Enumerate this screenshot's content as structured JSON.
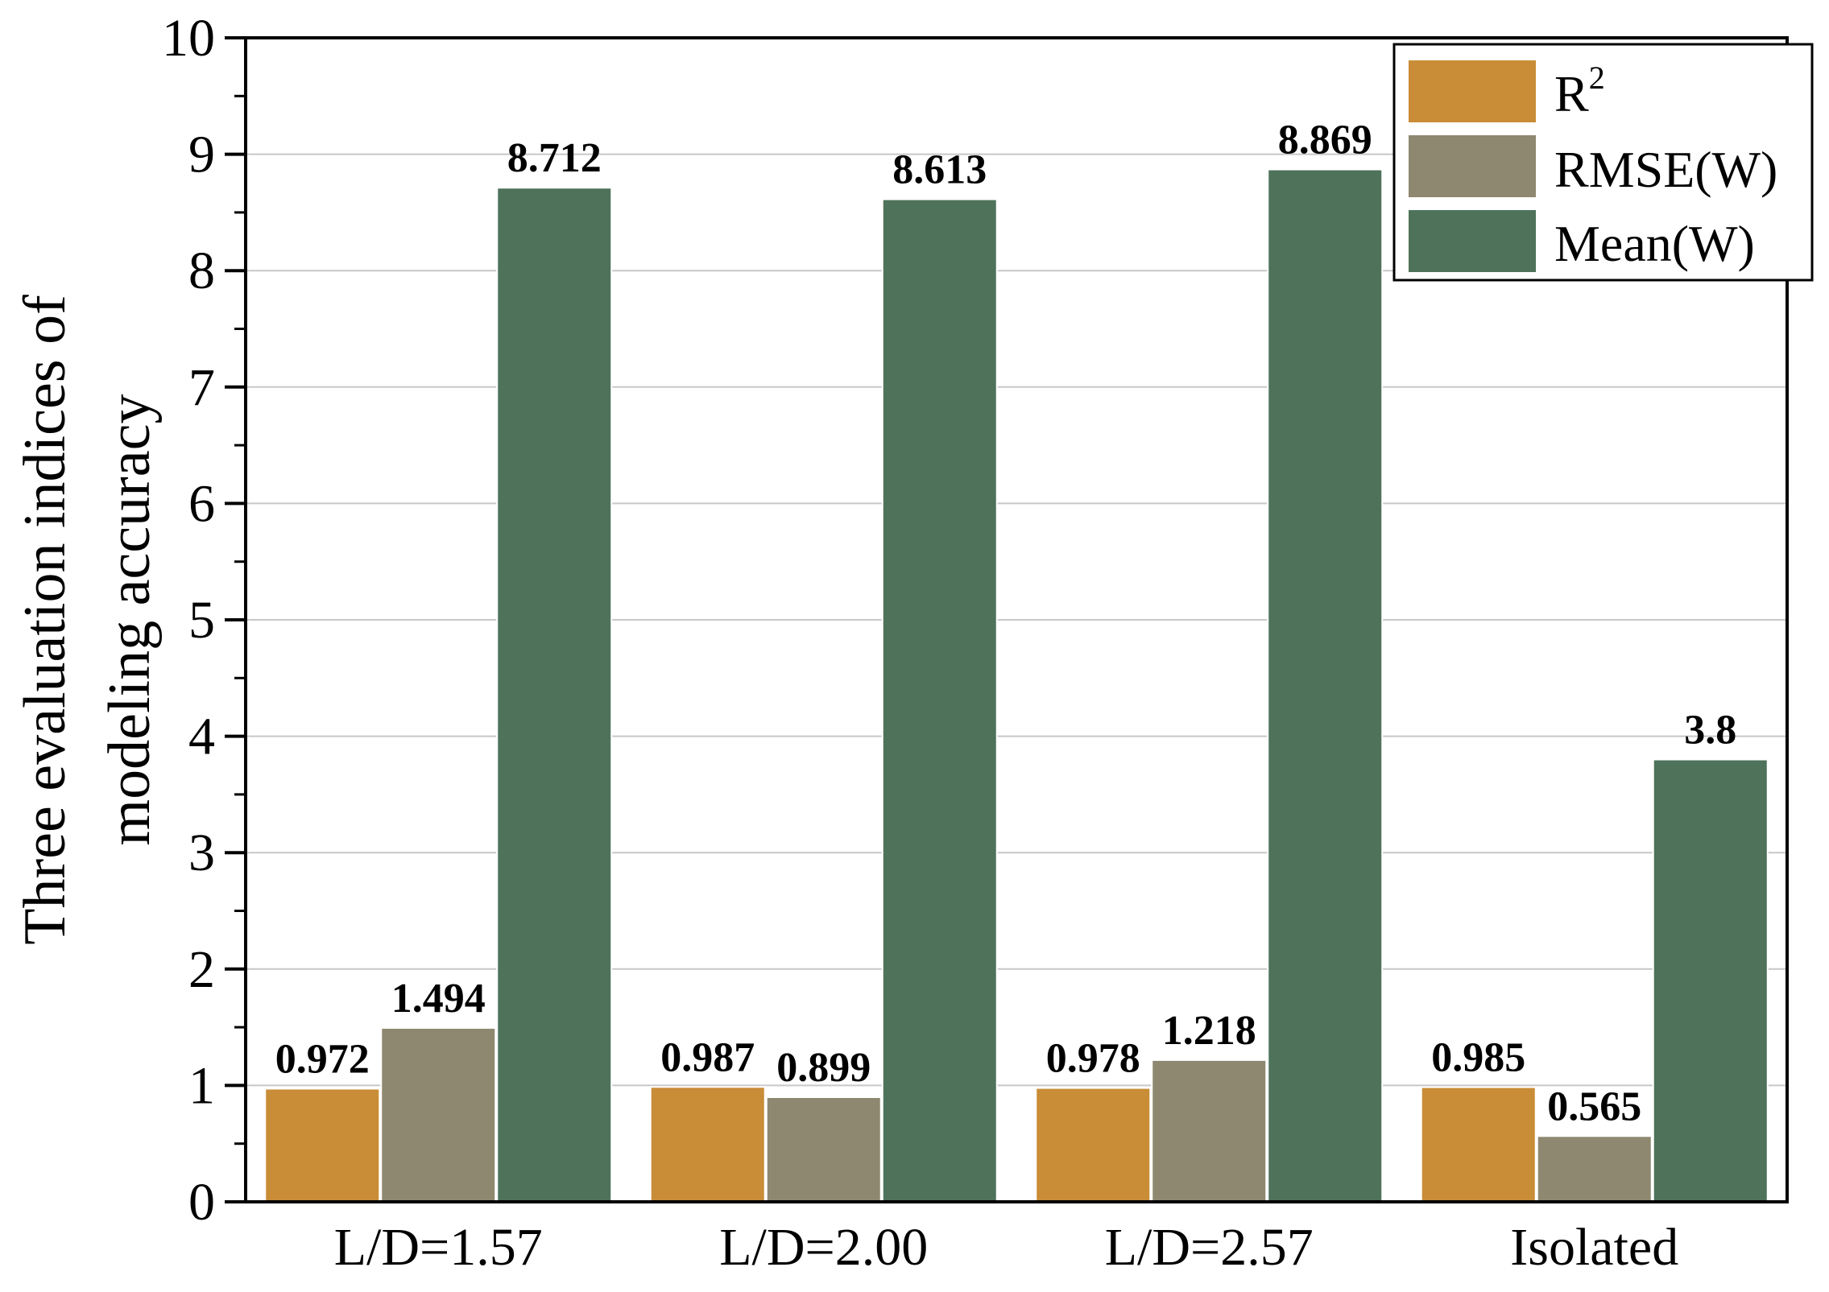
{
  "chart_data": {
    "type": "bar",
    "title": "",
    "xlabel": "",
    "ylabel": [
      "Three evaluation indices of",
      "modeling accuracy"
    ],
    "categories": [
      "L/D=1.57",
      "L/D=2.00",
      "L/D=2.57",
      "Isolated"
    ],
    "series": [
      {
        "name": "R",
        "superscript": "2",
        "color": "#c98c37",
        "values": [
          0.972,
          0.987,
          0.978,
          0.985
        ],
        "labels": [
          "0.972",
          "0.987",
          "0.978",
          "0.985"
        ]
      },
      {
        "name": "RMSE(W)",
        "color": "#8e8870",
        "values": [
          1.494,
          0.899,
          1.218,
          0.565
        ],
        "labels": [
          "1.494",
          "0.899",
          "1.218",
          "0.565"
        ]
      },
      {
        "name": "Mean(W)",
        "color": "#4e725a",
        "values": [
          8.712,
          8.613,
          8.869,
          3.8
        ],
        "labels": [
          "8.712",
          "8.613",
          "8.869",
          "3.8"
        ]
      }
    ],
    "ylim": [
      0,
      10
    ],
    "yticks": [
      0,
      1,
      2,
      3,
      4,
      5,
      6,
      7,
      8,
      9,
      10
    ],
    "grid": true,
    "legend": "top-right"
  }
}
